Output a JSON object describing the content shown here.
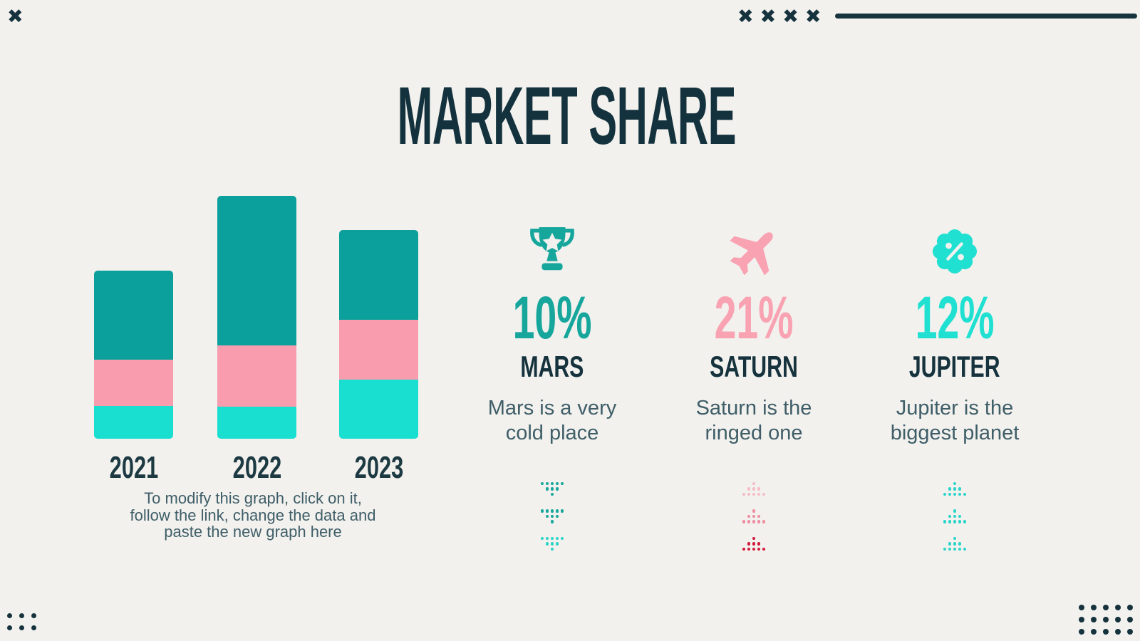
{
  "title": "MARKET SHARE",
  "colors": {
    "background": "#f2f1ee",
    "dark_navy": "#15323d",
    "slate_text": "#3f5e68",
    "teal": "#0ba09b",
    "pink": "#f99cae",
    "cyan": "#18dfd0",
    "crimson": "#d31a3c"
  },
  "chart_data": {
    "type": "bar",
    "stacked": true,
    "categories": [
      "2021",
      "2022",
      "2023"
    ],
    "series": [
      {
        "name": "top-segment-teal",
        "color": "#0ba09b",
        "values": [
          125,
          210,
          126
        ]
      },
      {
        "name": "middle-segment-pink",
        "color": "#f99cae",
        "values": [
          65,
          86,
          84
        ]
      },
      {
        "name": "bottom-segment-cyan",
        "color": "#18dfd0",
        "values": [
          46,
          45,
          83
        ]
      }
    ],
    "stack_order_top_to_bottom": [
      "teal",
      "pink",
      "cyan"
    ],
    "value_unit": "relative units (no axis or gridlines shown)",
    "legend": "none",
    "axes": "none",
    "note_lines": [
      "To modify this graph, click on it,",
      "follow the link, change the data and",
      "paste the new graph here"
    ]
  },
  "stats": [
    {
      "icon": "trophy-icon",
      "value": "10%",
      "name": "MARS",
      "desc_lines": [
        "Mars is a very",
        "cold place"
      ],
      "accent": "#16a69c",
      "arrows": {
        "direction": "down",
        "colors": [
          "#17a79c",
          "#17a79c",
          "#2ed4c8"
        ]
      }
    },
    {
      "icon": "airplane-icon",
      "value": "21%",
      "name": "SATURN",
      "desc_lines": [
        "Saturn is the",
        "ringed one"
      ],
      "accent": "#f9a2b2",
      "arrows": {
        "direction": "up",
        "colors": [
          "#f5bcc6",
          "#ee8ea1",
          "#d31a3c"
        ]
      }
    },
    {
      "icon": "percent-badge-icon",
      "value": "12%",
      "name": "JUPITER",
      "desc_lines": [
        "Jupiter is the",
        "biggest planet"
      ],
      "accent": "#1fe0d1",
      "arrows": {
        "direction": "up",
        "colors": [
          "#2bd5c9",
          "#2bd5c9",
          "#2bd5c9"
        ]
      }
    }
  ],
  "decorations": {
    "top_left_x_count": 1,
    "top_right_x_count": 4,
    "top_right_line": true,
    "dot_color": "#15323d",
    "bottom_left_dots": {
      "cols": 3,
      "rows": 2
    },
    "bottom_right_dots": {
      "cols": 5,
      "rows": 3
    }
  }
}
